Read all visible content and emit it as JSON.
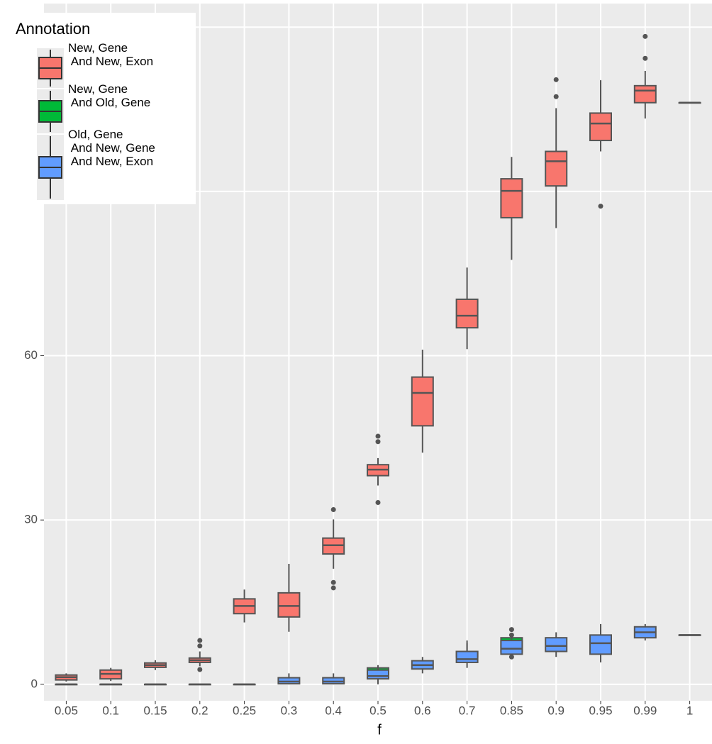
{
  "chart_data": {
    "type": "boxplot",
    "x_label": "f",
    "categories": [
      "0.05",
      "0.1",
      "0.15",
      "0.2",
      "0.25",
      "0.3",
      "0.4",
      "0.5",
      "0.6",
      "0.7",
      "0.85",
      "0.9",
      "0.95",
      "0.99",
      "1"
    ],
    "ylim": [
      -3,
      124.3
    ],
    "yticks": [
      0,
      30,
      60,
      90,
      120
    ],
    "grid": true,
    "legend_title": "Annotation",
    "legend_position": "top-left",
    "series": [
      {
        "name": "New, Gene\n And New, Exon",
        "color": "#F8766D",
        "values": [
          [
            0.5,
            0.8,
            1.3,
            1.7,
            2
          ],
          [
            0.6,
            1,
            1.9,
            2.6,
            3
          ],
          [
            2.6,
            3.1,
            3.5,
            3.9,
            4.4
          ],
          [
            3.3,
            4,
            4.4,
            4.8,
            6
          ],
          [
            11.3,
            12.9,
            14.3,
            15.6,
            17.3
          ],
          [
            9.6,
            12.3,
            14.3,
            16.7,
            22
          ],
          [
            21.1,
            23.8,
            25.4,
            26.7,
            30.1
          ],
          [
            36.3,
            38.1,
            39.2,
            40.1,
            41.3
          ],
          [
            42.3,
            47.2,
            53.2,
            56.1,
            61.1
          ],
          [
            61.2,
            65.1,
            67.3,
            70.3,
            76.1
          ],
          [
            77.5,
            85.2,
            90.1,
            92.3,
            96.3
          ],
          [
            83.3,
            91,
            95.5,
            97.3,
            105.2
          ],
          [
            97.3,
            99.3,
            102.4,
            104.3,
            110.3
          ],
          [
            103.3,
            106.2,
            108.4,
            109.3,
            112
          ],
          [
            106.2,
            106.2,
            106.2,
            106.2,
            106.2
          ]
        ],
        "outliers": [
          [],
          [],
          [],
          [
            8,
            7,
            2.7
          ],
          [],
          [],
          [
            31.9,
            18.6,
            17.6
          ],
          [
            45.3,
            44.3,
            33.2
          ],
          [],
          [],
          [],
          [
            110.4,
            107.3
          ],
          [
            87.3
          ],
          [
            118.3,
            114.3
          ],
          []
        ]
      },
      {
        "name": "New, Gene\n And Old, Gene",
        "color": "#00BA38",
        "values": [
          null,
          null,
          null,
          null,
          null,
          null,
          null,
          [
            1,
            1.5,
            2.5,
            3,
            3.5
          ],
          null,
          [
            4,
            5,
            5.5,
            6,
            8
          ],
          [
            5,
            6,
            7,
            8.5,
            9
          ],
          null,
          null,
          null,
          null
        ],
        "outliers": [
          [],
          [],
          [],
          [],
          [],
          [],
          [],
          [],
          [],
          [],
          [
            10,
            9,
            5
          ],
          [],
          [],
          [],
          []
        ]
      },
      {
        "name": "Old, Gene\n And New, Gene\n And New, Exon",
        "color": "#619CFF",
        "values": [
          [
            0,
            0,
            0,
            0,
            0
          ],
          [
            0,
            0,
            0,
            0,
            0
          ],
          [
            0,
            0,
            0,
            0,
            0
          ],
          [
            0,
            0,
            0,
            0,
            0
          ],
          [
            0,
            0,
            0,
            0,
            0
          ],
          [
            0,
            0.1,
            0.5,
            1.2,
            2
          ],
          [
            0,
            0.1,
            0.5,
            1.2,
            2
          ],
          [
            0,
            1,
            1.5,
            2.6,
            3
          ],
          [
            2,
            2.8,
            3.5,
            4.3,
            5
          ],
          [
            3,
            4,
            4.6,
            6,
            7.5
          ],
          [
            5,
            5.5,
            6.5,
            8,
            9
          ],
          [
            5,
            6,
            7,
            8.5,
            9.5
          ],
          [
            4,
            5.5,
            7.5,
            9,
            11
          ],
          [
            8,
            8.5,
            9.5,
            10.5,
            11
          ],
          [
            9,
            9,
            9,
            9,
            9
          ]
        ],
        "outliers": [
          [],
          [],
          [],
          [],
          [],
          [],
          [],
          [],
          [],
          [],
          [],
          [],
          [],
          [],
          []
        ]
      }
    ]
  }
}
